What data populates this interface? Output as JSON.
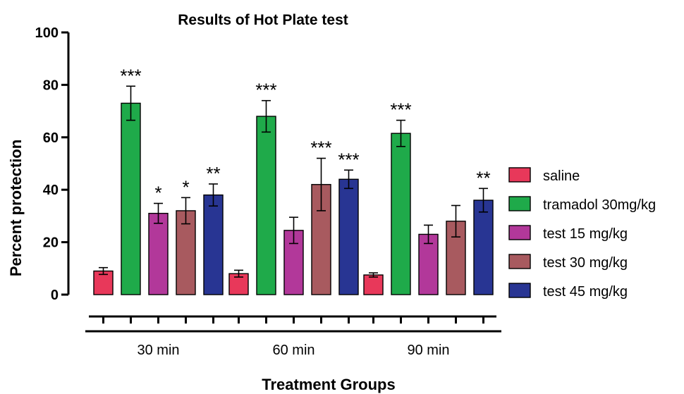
{
  "chart_data": {
    "type": "bar",
    "title": "Results of Hot Plate test",
    "xlabel": "Treatment Groups",
    "ylabel": "Percent protection",
    "ylim": [
      0,
      100
    ],
    "yticks": [
      "0",
      "20",
      "40",
      "60",
      "80",
      "100"
    ],
    "grid": false,
    "legend_position": "right",
    "categories": [
      "30 min",
      "60 min",
      "90 min"
    ],
    "series": [
      {
        "name": "saline",
        "color": "#e8385a",
        "values": [
          9,
          8,
          7.5
        ],
        "errors": [
          1.3,
          1.3,
          0.8
        ],
        "significance": [
          "",
          "",
          ""
        ]
      },
      {
        "name": "tramadol 30mg/kg",
        "color": "#1faa4a",
        "values": [
          73,
          68,
          61.5
        ],
        "errors": [
          6.5,
          6,
          5
        ],
        "significance": [
          "***",
          "***",
          "***"
        ]
      },
      {
        "name": "test 15 mg/kg",
        "color": "#b2389a",
        "values": [
          31,
          24.5,
          23
        ],
        "errors": [
          3.8,
          5,
          3.5
        ],
        "significance": [
          "*",
          "",
          ""
        ]
      },
      {
        "name": "test 30 mg/kg",
        "color": "#a85a5f",
        "values": [
          32,
          42,
          28
        ],
        "errors": [
          5,
          10,
          6
        ],
        "significance": [
          "*",
          "***",
          ""
        ]
      },
      {
        "name": "test 45 mg/kg",
        "color": "#283593",
        "values": [
          38,
          44,
          36
        ],
        "errors": [
          4.2,
          3.5,
          4.5
        ],
        "significance": [
          "**",
          "***",
          "**"
        ]
      }
    ]
  }
}
